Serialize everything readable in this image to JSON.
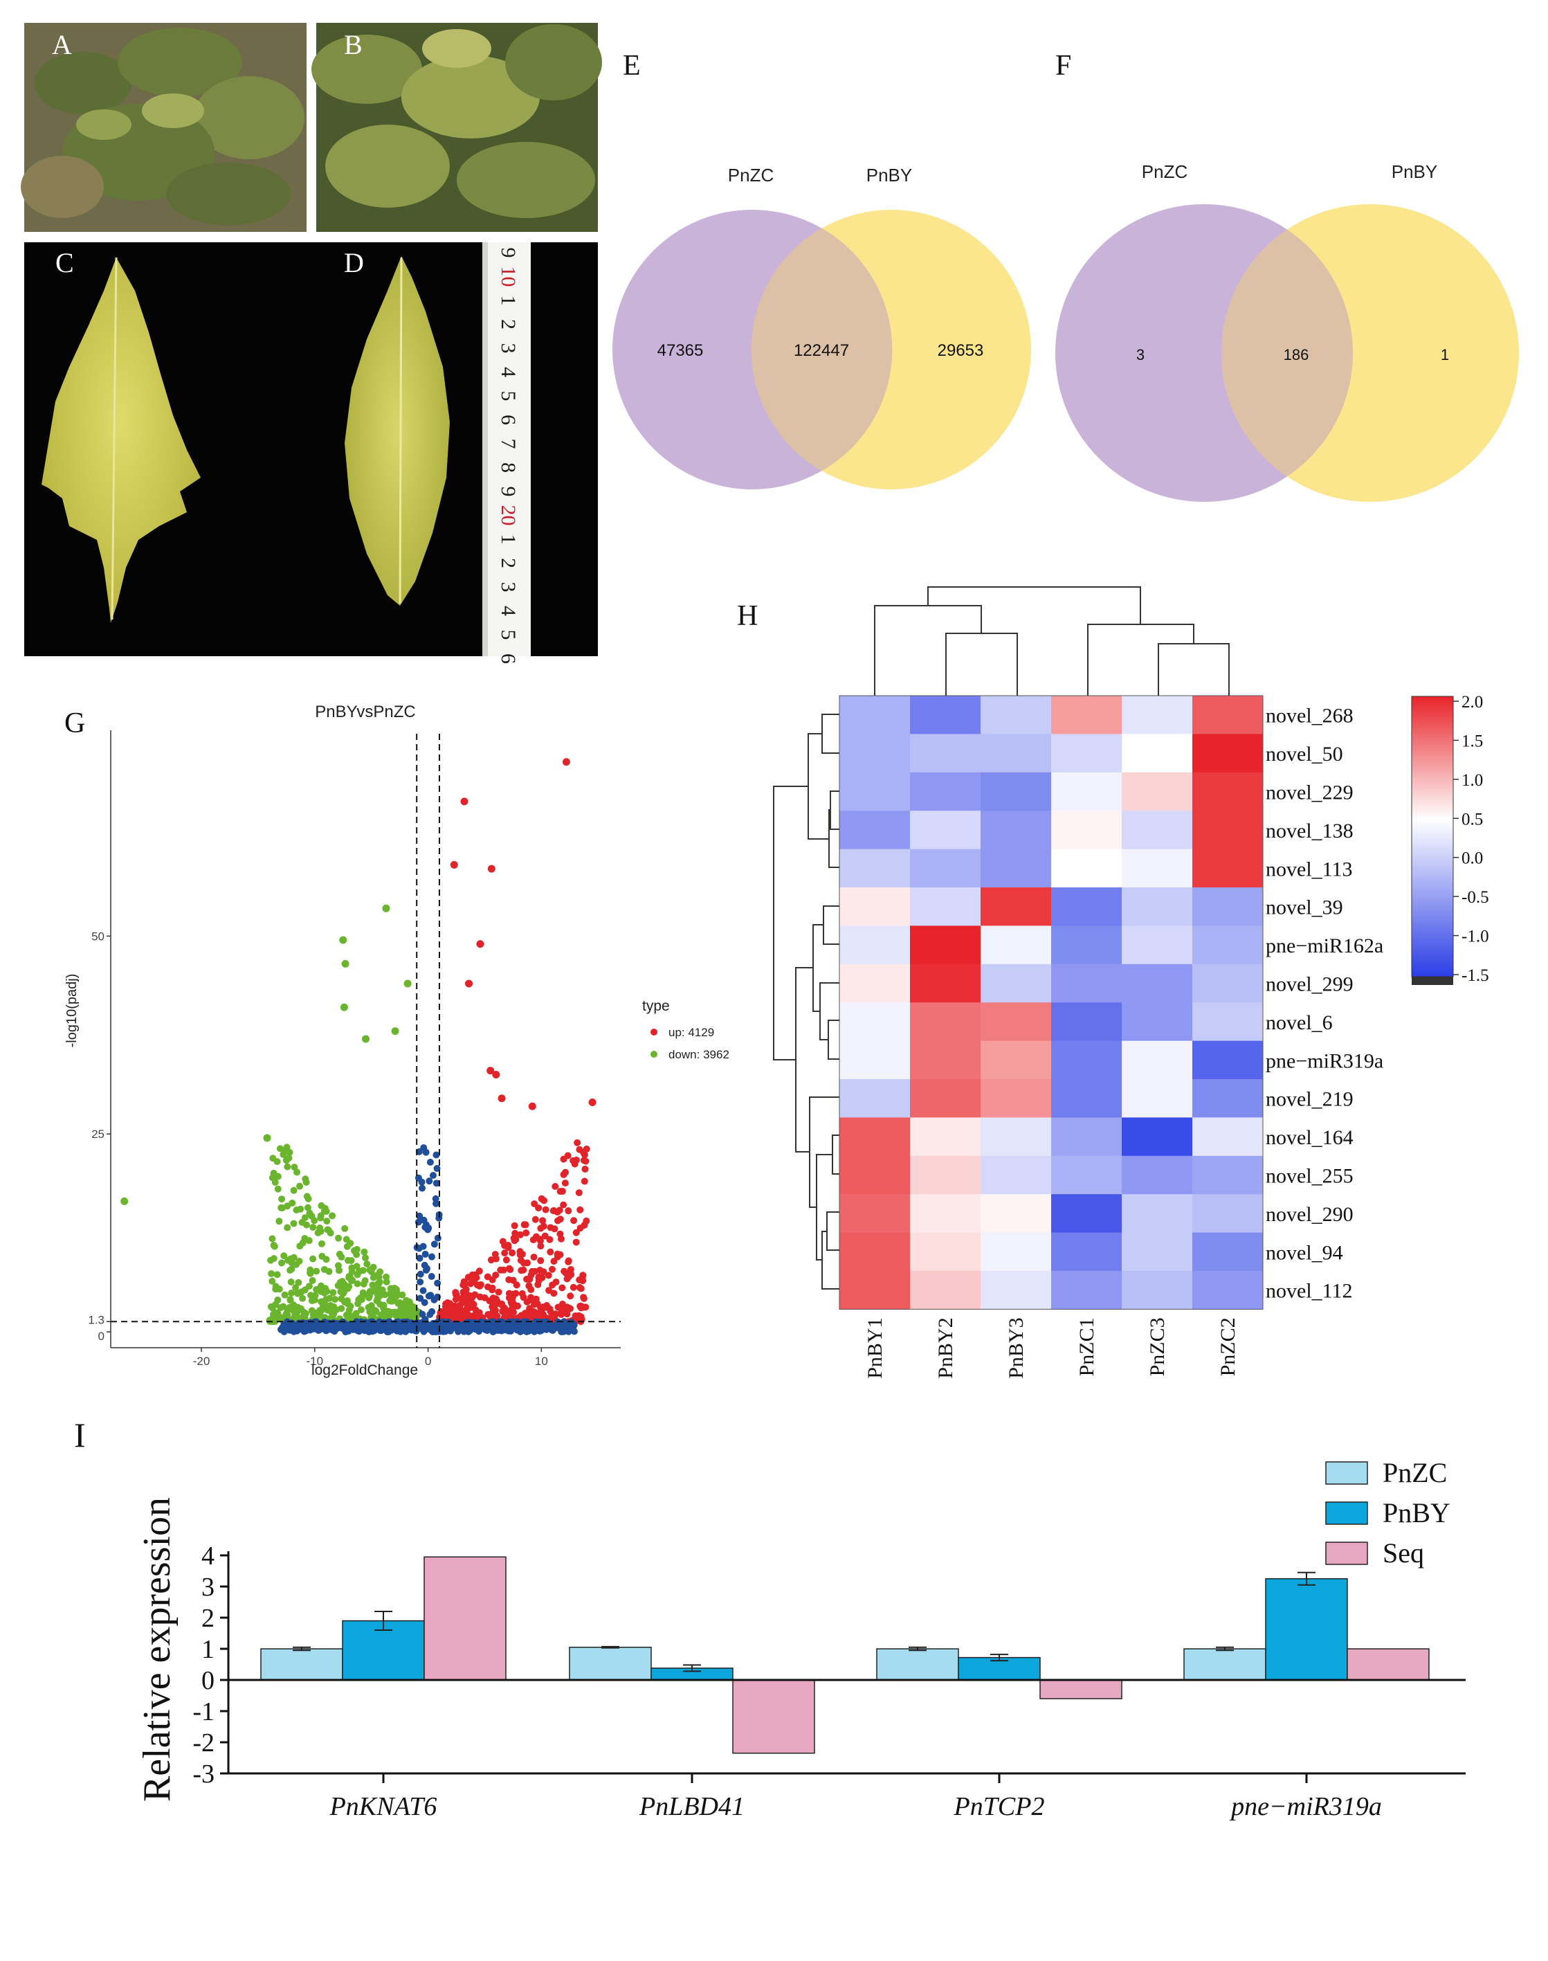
{
  "panel_labels": {
    "A": "A",
    "B": "B",
    "C": "C",
    "D": "D",
    "E": "E",
    "F": "F",
    "G": "G",
    "H": "H",
    "I": "I"
  },
  "ruler": {
    "numbers": [
      "9",
      "10",
      "1",
      "2",
      "3",
      "4",
      "5",
      "6",
      "7",
      "8",
      "9",
      "20",
      "1",
      "2",
      "3",
      "4",
      "5",
      "6"
    ]
  },
  "colors": {
    "venn_purple": "#c9b3d8",
    "venn_yellow": "#fbe68e",
    "venn_overlap": "#dcc1a6",
    "up": "#e0242a",
    "down": "#6ab42e",
    "ns": "#1f4e9b",
    "pnzc_bar": "#a6dcf0",
    "pnby_bar": "#0aa6dc",
    "seq_bar": "#e8a7c1"
  },
  "chart_data": [
    {
      "panel": "E",
      "type": "venn",
      "sets": [
        "PnZC",
        "PnBY"
      ],
      "values": {
        "PnZC_only": "47365",
        "both": "122447",
        "PnBY_only": "29653"
      }
    },
    {
      "panel": "F",
      "type": "venn",
      "sets": [
        "PnZC",
        "PnBY"
      ],
      "values": {
        "PnZC_only": "3",
        "both": "186",
        "PnBY_only": "1"
      }
    },
    {
      "panel": "G",
      "type": "scatter",
      "title": "PnBYvsPnZC",
      "xlabel": "log2FoldChange",
      "ylabel": "-log10(padj)",
      "xlim": [
        -28,
        17
      ],
      "ylim": [
        -2,
        76
      ],
      "xticks": [
        -20,
        -10,
        0,
        10
      ],
      "yticks": [
        0,
        1.3,
        25,
        50
      ],
      "thresholds": {
        "x": [
          -1,
          1
        ],
        "y": 1.3
      },
      "legend": {
        "title": "type",
        "items": [
          "up: 4129",
          "down: 3962"
        ]
      },
      "outliers": [
        {
          "x": 12.2,
          "y": 72,
          "group": "up"
        },
        {
          "x": 3.2,
          "y": 67,
          "group": "up"
        },
        {
          "x": 2.3,
          "y": 59,
          "group": "up"
        },
        {
          "x": 5.6,
          "y": 58.5,
          "group": "up"
        },
        {
          "x": 4.6,
          "y": 49,
          "group": "up"
        },
        {
          "x": 3.6,
          "y": 44,
          "group": "up"
        },
        {
          "x": 5.5,
          "y": 33,
          "group": "up"
        },
        {
          "x": 6.0,
          "y": 32.5,
          "group": "up"
        },
        {
          "x": 6.5,
          "y": 29.5,
          "group": "up"
        },
        {
          "x": 9.2,
          "y": 28.5,
          "group": "up"
        },
        {
          "x": 14.5,
          "y": 29,
          "group": "up"
        },
        {
          "x": -3.7,
          "y": 53.5,
          "group": "down"
        },
        {
          "x": -7.5,
          "y": 49.5,
          "group": "down"
        },
        {
          "x": -7.3,
          "y": 46.5,
          "group": "down"
        },
        {
          "x": -1.8,
          "y": 44,
          "group": "down"
        },
        {
          "x": -7.4,
          "y": 41,
          "group": "down"
        },
        {
          "x": -5.5,
          "y": 37,
          "group": "down"
        },
        {
          "x": -2.9,
          "y": 38,
          "group": "down"
        },
        {
          "x": -26.8,
          "y": 16.5,
          "group": "down"
        },
        {
          "x": -14.2,
          "y": 24.5,
          "group": "down"
        }
      ]
    },
    {
      "panel": "H",
      "type": "heatmap",
      "columns": [
        "PnBY1",
        "PnBY2",
        "PnBY3",
        "PnZC1",
        "PnZC3",
        "PnZC2"
      ],
      "rows": [
        "novel_268",
        "novel_50",
        "novel_229",
        "novel_138",
        "novel_113",
        "novel_39",
        "pne−miR162a",
        "novel_299",
        "novel_6",
        "pne−miR319a",
        "novel_219",
        "novel_164",
        "novel_255",
        "novel_290",
        "novel_94",
        "novel_112"
      ],
      "values": [
        [
          -0.6,
          -1.0,
          -0.4,
          0.9,
          -0.2,
          1.5
        ],
        [
          -0.6,
          -0.5,
          -0.5,
          -0.3,
          0.0,
          2.0
        ],
        [
          -0.6,
          -0.8,
          -0.9,
          -0.1,
          0.4,
          1.8
        ],
        [
          -0.8,
          -0.3,
          -0.8,
          0.1,
          -0.3,
          1.8
        ],
        [
          -0.4,
          -0.6,
          -0.8,
          0.0,
          -0.1,
          1.8
        ],
        [
          0.2,
          -0.3,
          1.8,
          -1.0,
          -0.4,
          -0.7
        ],
        [
          -0.2,
          2.0,
          -0.1,
          -0.9,
          -0.3,
          -0.6
        ],
        [
          0.2,
          1.9,
          -0.4,
          -0.8,
          -0.8,
          -0.5
        ],
        [
          -0.1,
          1.3,
          1.2,
          -1.1,
          -0.8,
          -0.4
        ],
        [
          -0.1,
          1.3,
          0.9,
          -1.0,
          -0.1,
          -1.2
        ],
        [
          -0.4,
          1.4,
          1.0,
          -1.0,
          -0.1,
          -0.9
        ],
        [
          1.5,
          0.2,
          -0.2,
          -0.7,
          -1.4,
          -0.2
        ],
        [
          1.5,
          0.4,
          -0.3,
          -0.6,
          -0.8,
          -0.7
        ],
        [
          1.4,
          0.2,
          0.1,
          -1.3,
          -0.4,
          -0.5
        ],
        [
          1.5,
          0.3,
          -0.1,
          -1.0,
          -0.4,
          -0.9
        ],
        [
          1.5,
          0.5,
          -0.2,
          -0.8,
          -0.5,
          -0.8
        ]
      ],
      "colorbar": {
        "ticks": [
          "2.0",
          "1.5",
          "1.0",
          "0.5",
          "0.0",
          "-0.5",
          "-1.0",
          "-1.5"
        ],
        "range": [
          -1.5,
          2.0
        ]
      }
    },
    {
      "panel": "I",
      "type": "bar",
      "ylabel": "Relative expression",
      "ylim": [
        -3,
        4
      ],
      "yticks": [
        "4",
        "3",
        "2",
        "1",
        "0",
        "-1",
        "-2",
        "-3"
      ],
      "categories": [
        "PnKNAT6",
        "PnLBD41",
        "PnTCP2",
        "pne−miR319a"
      ],
      "series": [
        {
          "name": "PnZC",
          "values": [
            1.0,
            1.05,
            1.0,
            1.0
          ],
          "errors": [
            0.05,
            0.02,
            0.05,
            0.05
          ]
        },
        {
          "name": "PnBY",
          "values": [
            1.9,
            0.38,
            0.72,
            3.25
          ],
          "errors": [
            0.3,
            0.1,
            0.1,
            0.2
          ]
        },
        {
          "name": "Seq",
          "values": [
            3.95,
            -2.35,
            -0.6,
            1.0
          ],
          "errors": null
        }
      ]
    }
  ]
}
